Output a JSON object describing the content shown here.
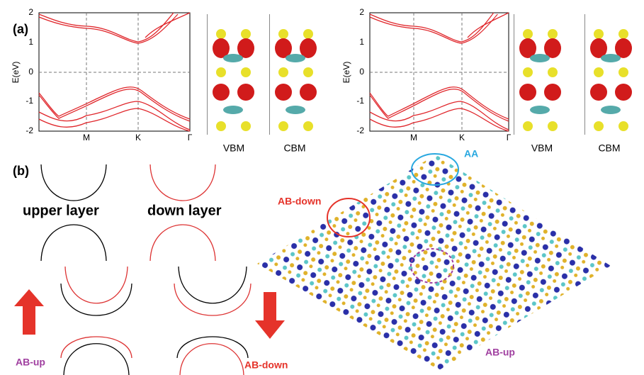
{
  "panel_a": {
    "label": "(a)",
    "plots": [
      {
        "ylabel": "E(eV)",
        "yticks": [
          "2",
          "1",
          "0",
          "-1",
          "-2"
        ],
        "xticks": [
          "M",
          "K",
          "Γ"
        ],
        "orbitals": [
          "VBM",
          "CBM"
        ]
      },
      {
        "ylabel": "E(eV)",
        "yticks": [
          "2",
          "1",
          "0",
          "-1",
          "-2"
        ],
        "xticks": [
          "M",
          "K",
          "Γ"
        ],
        "orbitals": [
          "VBM",
          "CBM"
        ]
      }
    ]
  },
  "panel_b": {
    "label": "(b)",
    "layers": [
      "upper layer",
      "down layer"
    ],
    "stacking_labels": [
      "AB-up",
      "AB-down"
    ],
    "regions": [
      "AA",
      "AB-down",
      "AB-up"
    ]
  }
}
